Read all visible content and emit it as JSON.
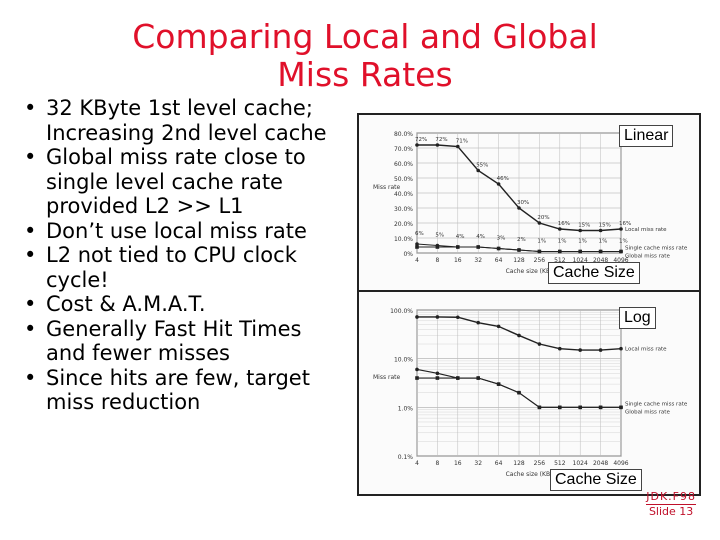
{
  "slide": {
    "title_line1": "Comparing Local and Global",
    "title_line2": "Miss Rates",
    "bullets": [
      "32 KByte 1st level cache;\nIncreasing 2nd level cache",
      "Global miss rate close to\nsingle level cache rate\nprovided L2 >> L1",
      "Don’t use local miss rate",
      "L2 not tied to CPU clock\ncycle!",
      "Cost & A.M.A.T.",
      "Generally Fast Hit Times\nand fewer misses",
      "Since hits are few, target\nmiss reduction"
    ],
    "footer_line1": "JDK.F98",
    "footer_line2": "Slide 13"
  },
  "tags": {
    "linear": "Linear",
    "log": "Log",
    "cache_size_top": "Cache Size",
    "cache_size_bottom": "Cache Size"
  },
  "colors": {
    "title": "#e0102a",
    "footer": "#c0102a"
  },
  "chart_data": [
    {
      "type": "line",
      "scale": "linear",
      "ylabel": "Miss rate",
      "xlabel": "Cache size (KB)",
      "x": [
        "4",
        "8",
        "16",
        "32",
        "64",
        "128",
        "256",
        "512",
        "1024",
        "2048",
        "4096"
      ],
      "yticks": [
        "80.0%",
        "70.0%",
        "60.0%",
        "50.0%",
        "40.0%",
        "30.0%",
        "20.0%",
        "10.0%",
        "0%"
      ],
      "ylim": [
        0,
        80
      ],
      "series": [
        {
          "name": "Local miss rate",
          "values": [
            72,
            72,
            71,
            55,
            46,
            30,
            20,
            16,
            15,
            15,
            16
          ],
          "labels": [
            "72%",
            "72%",
            "71%",
            "55%",
            "46%",
            "30%",
            "20%",
            "16%",
            "15%",
            "15%",
            "16%"
          ]
        },
        {
          "name": "Single cache miss rate",
          "values": [
            6,
            5,
            4,
            4,
            3,
            2,
            1,
            1,
            1,
            1,
            1
          ],
          "labels": [
            "6%",
            "5%",
            "4%",
            "4%",
            "3%",
            "2%",
            "1%",
            "1%",
            "1%",
            "1%",
            "1%"
          ]
        },
        {
          "name": "Global miss rate",
          "values": [
            4,
            4,
            4,
            4,
            3,
            2,
            1,
            1,
            1,
            1,
            1
          ],
          "labels": [
            "4%",
            "4%",
            "4%",
            "4%",
            "3%",
            "2%",
            "1%",
            "1%",
            "1%",
            "1%",
            "1%"
          ]
        }
      ]
    },
    {
      "type": "line",
      "scale": "log",
      "ylabel": "Miss rate",
      "xlabel": "Cache size (KB)",
      "x": [
        "4",
        "8",
        "16",
        "32",
        "64",
        "128",
        "256",
        "512",
        "1024",
        "2048",
        "4096"
      ],
      "yticks": [
        "100.0%",
        "10.0%",
        "1.0%",
        "0.1%"
      ],
      "ylim": [
        0.1,
        100
      ],
      "series": [
        {
          "name": "Local miss rate",
          "values": [
            72,
            72,
            71,
            55,
            46,
            30,
            20,
            16,
            15,
            15,
            16
          ]
        },
        {
          "name": "Single cache miss rate",
          "values": [
            6,
            5,
            4,
            4,
            3,
            2,
            1,
            1,
            1,
            1,
            1
          ]
        },
        {
          "name": "Global miss rate",
          "values": [
            4,
            4,
            4,
            4,
            3,
            2,
            1,
            1,
            1,
            1,
            1
          ]
        }
      ]
    }
  ]
}
